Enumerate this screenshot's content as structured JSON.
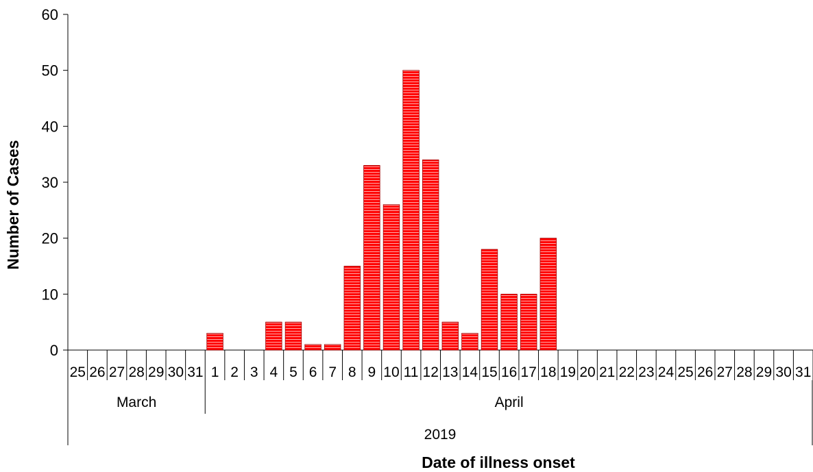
{
  "chart_data": {
    "type": "bar",
    "categories": [
      "25",
      "26",
      "27",
      "28",
      "29",
      "30",
      "31",
      "1",
      "2",
      "3",
      "4",
      "5",
      "6",
      "7",
      "8",
      "9",
      "10",
      "11",
      "12",
      "13",
      "14",
      "15",
      "16",
      "17",
      "18",
      "19",
      "20",
      "21",
      "22",
      "23",
      "24",
      "25",
      "26",
      "27",
      "28",
      "29",
      "30",
      "31"
    ],
    "values": [
      0,
      0,
      0,
      0,
      0,
      0,
      0,
      3,
      0,
      0,
      5,
      5,
      1,
      1,
      15,
      33,
      26,
      50,
      34,
      5,
      3,
      18,
      10,
      10,
      20,
      0,
      0,
      0,
      0,
      0,
      0,
      0,
      0,
      0,
      0,
      0,
      0,
      0
    ],
    "groups": [
      {
        "label": "March",
        "start": 0,
        "end": 6
      },
      {
        "label": "April",
        "start": 7,
        "end": 37
      }
    ],
    "year": "2019",
    "xlabel": "Date of illness  onset",
    "ylabel": "Number of Cases",
    "ylim": [
      0,
      60
    ],
    "yticks": [
      "0",
      "10",
      "20",
      "30",
      "40",
      "50",
      "60"
    ],
    "bar_color": "#ff0000",
    "bar_stripe_color": "#ffffff",
    "grid": false
  }
}
